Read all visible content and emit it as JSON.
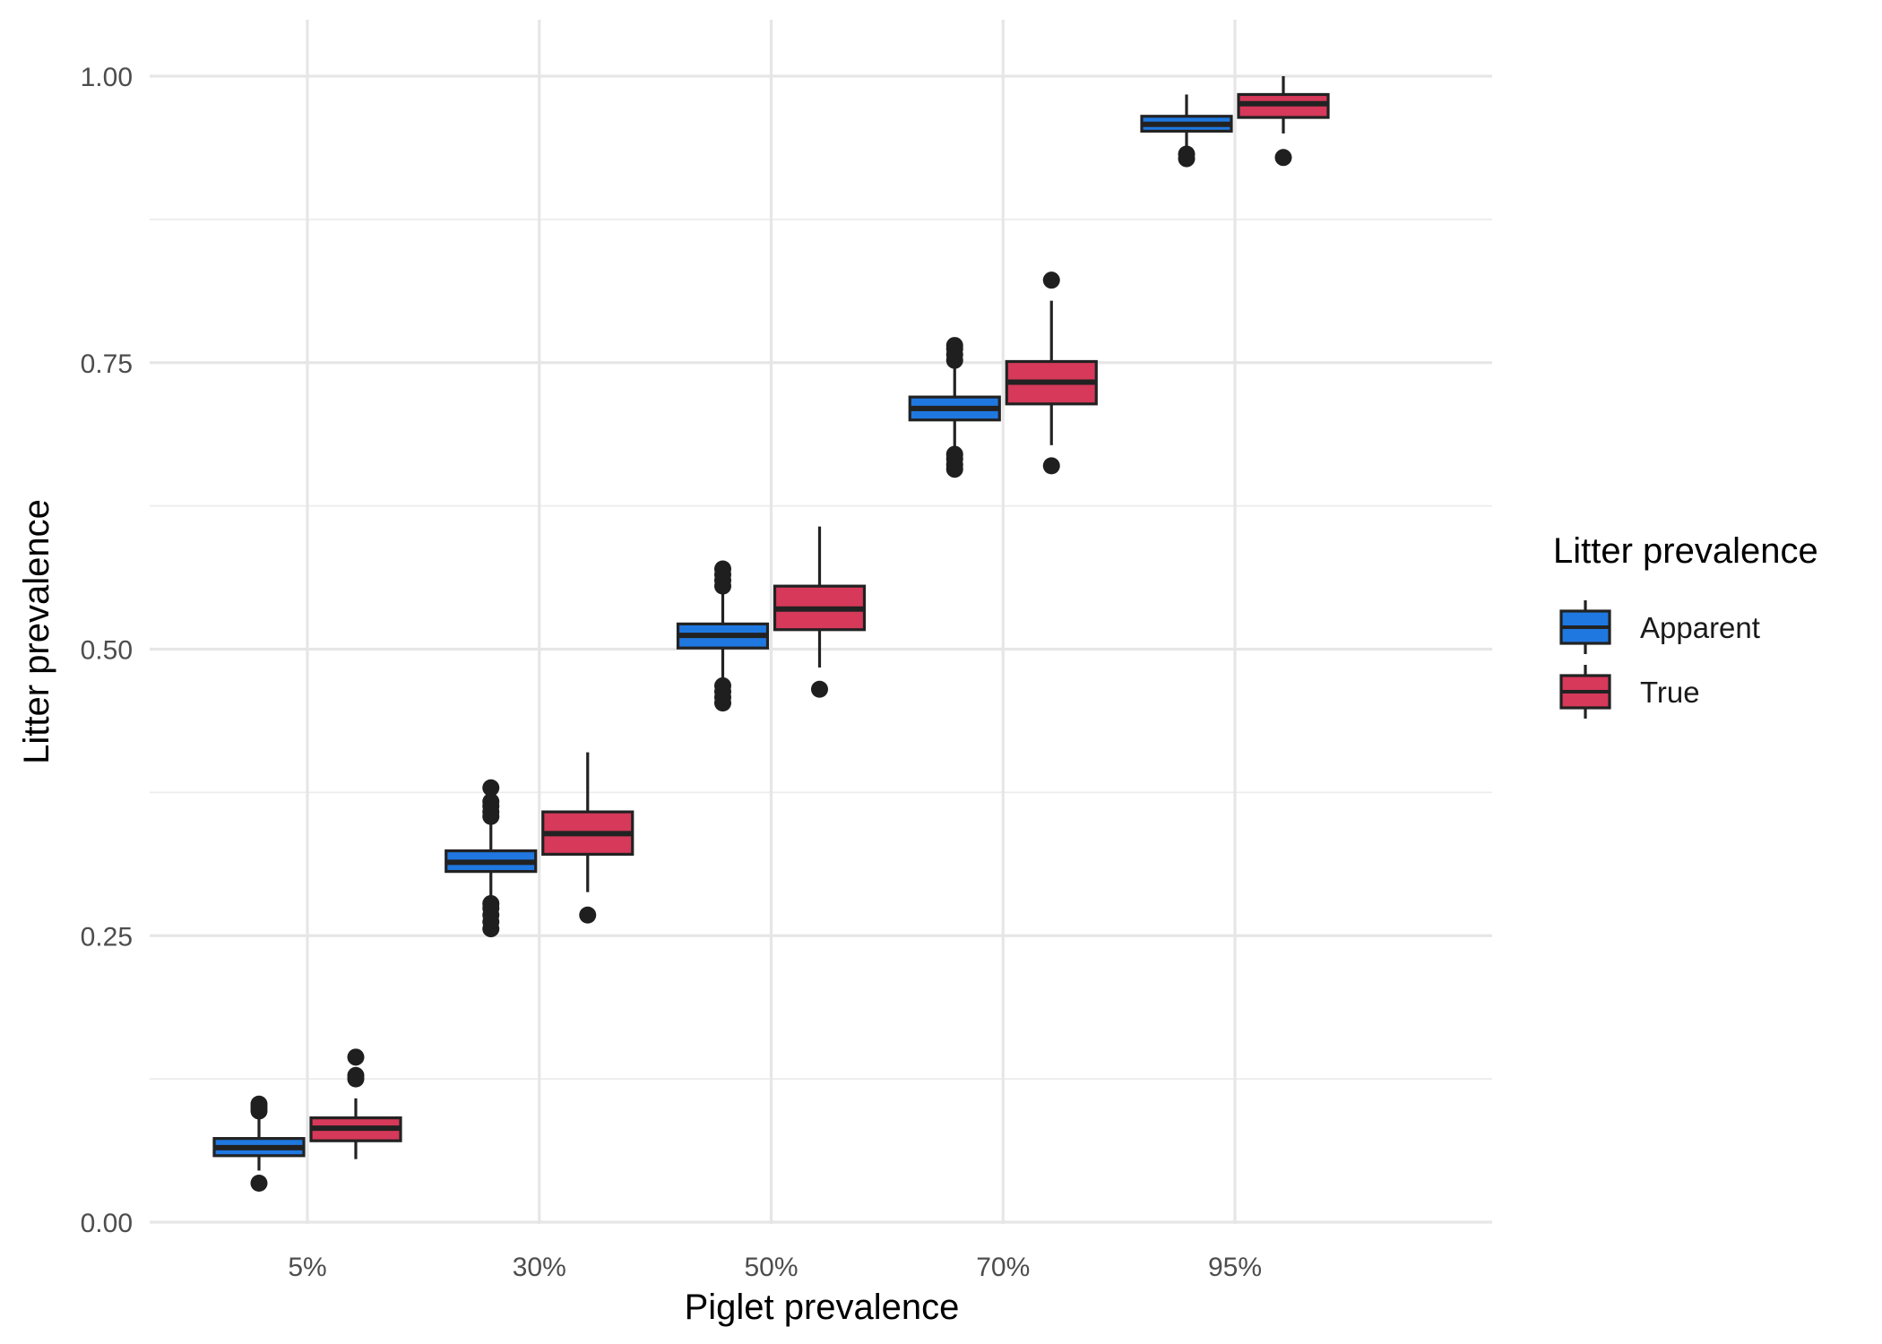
{
  "chart_data": {
    "type": "boxplot",
    "xlabel": "Piglet prevalence",
    "ylabel": "Litter prevalence",
    "categories": [
      "5%",
      "30%",
      "50%",
      "70%",
      "95%"
    ],
    "ylim": [
      -0.01,
      1.05
    ],
    "y_ticks": [
      0.0,
      0.25,
      0.5,
      0.75,
      1.0
    ],
    "y_tick_labels": [
      "0.00",
      "0.25",
      "0.50",
      "0.75",
      "1.00"
    ],
    "y_minor_ticks": [
      0.125,
      0.375,
      0.625,
      0.875
    ],
    "grid": true,
    "legend": {
      "title": "Litter prevalence",
      "position": "right",
      "entries": [
        {
          "label": "Apparent",
          "color": "#1f78e0"
        },
        {
          "label": "True",
          "color": "#d6395a"
        }
      ]
    },
    "series": [
      {
        "name": "Apparent",
        "color": "#1f78e0",
        "boxes": [
          {
            "category": "5%",
            "q1": 0.058,
            "median": 0.065,
            "q3": 0.073,
            "whisker_low": 0.045,
            "whisker_high": 0.09,
            "outliers": [
              0.034,
              0.097,
              0.1,
              0.103
            ]
          },
          {
            "category": "30%",
            "q1": 0.306,
            "median": 0.314,
            "q3": 0.324,
            "whisker_low": 0.282,
            "whisker_high": 0.348,
            "outliers": [
              0.256,
              0.262,
              0.268,
              0.274,
              0.278,
              0.354,
              0.358,
              0.363,
              0.367,
              0.379
            ]
          },
          {
            "category": "50%",
            "q1": 0.501,
            "median": 0.512,
            "q3": 0.522,
            "whisker_low": 0.475,
            "whisker_high": 0.55,
            "outliers": [
              0.453,
              0.458,
              0.463,
              0.468,
              0.555,
              0.56,
              0.565,
              0.57
            ]
          },
          {
            "category": "70%",
            "q1": 0.7,
            "median": 0.71,
            "q3": 0.72,
            "whisker_low": 0.675,
            "whisker_high": 0.745,
            "outliers": [
              0.657,
              0.661,
              0.666,
              0.67,
              0.752,
              0.757,
              0.762,
              0.765
            ]
          },
          {
            "category": "95%",
            "q1": 0.952,
            "median": 0.958,
            "q3": 0.965,
            "whisker_low": 0.938,
            "whisker_high": 0.984,
            "outliers": [
              0.928,
              0.932
            ]
          }
        ]
      },
      {
        "name": "True",
        "color": "#d6395a",
        "boxes": [
          {
            "category": "5%",
            "q1": 0.071,
            "median": 0.082,
            "q3": 0.091,
            "whisker_low": 0.055,
            "whisker_high": 0.108,
            "outliers": [
              0.125,
              0.128,
              0.144
            ]
          },
          {
            "category": "30%",
            "q1": 0.321,
            "median": 0.339,
            "q3": 0.358,
            "whisker_low": 0.288,
            "whisker_high": 0.41,
            "outliers": [
              0.268
            ]
          },
          {
            "category": "50%",
            "q1": 0.517,
            "median": 0.535,
            "q3": 0.555,
            "whisker_low": 0.484,
            "whisker_high": 0.607,
            "outliers": [
              0.465
            ]
          },
          {
            "category": "70%",
            "q1": 0.714,
            "median": 0.733,
            "q3": 0.751,
            "whisker_low": 0.678,
            "whisker_high": 0.804,
            "outliers": [
              0.66,
              0.822
            ]
          },
          {
            "category": "95%",
            "q1": 0.964,
            "median": 0.976,
            "q3": 0.984,
            "whisker_low": 0.95,
            "whisker_high": 1.0,
            "outliers": [
              0.929
            ]
          }
        ]
      }
    ]
  }
}
